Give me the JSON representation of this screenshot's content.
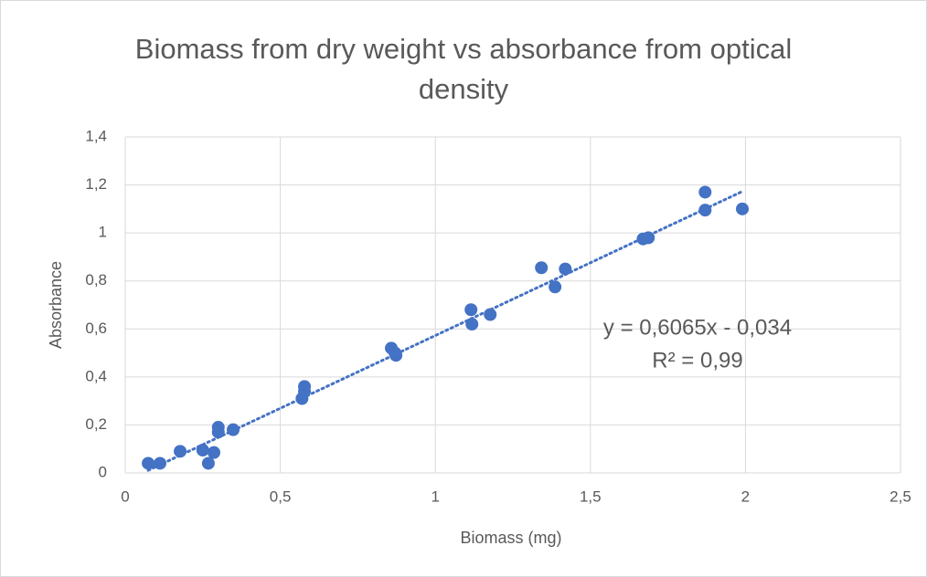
{
  "chart_data": {
    "type": "scatter",
    "title": "Biomass from dry weight vs absorbance from optical density",
    "xlabel": "Biomass (mg)",
    "ylabel": "Absorbance",
    "xlim": [
      0,
      2.5
    ],
    "ylim": [
      0,
      1.4
    ],
    "xticks": [
      0,
      {
        "value": 0.5,
        "label": "0,5"
      },
      1,
      {
        "value": 1.5,
        "label": "1,5"
      },
      2,
      {
        "value": 2.5,
        "label": "2,5"
      }
    ],
    "yticks": [
      0,
      {
        "value": 0.2,
        "label": "0,2"
      },
      {
        "value": 0.4,
        "label": "0,4"
      },
      {
        "value": 0.6,
        "label": "0,6"
      },
      {
        "value": 0.8,
        "label": "0,8"
      },
      1,
      {
        "value": 1.2,
        "label": "1,2"
      },
      {
        "value": 1.4,
        "label": "1,4"
      }
    ],
    "grid": true,
    "color": "#4472c4",
    "x": [
      0.074,
      0.112,
      0.177,
      0.25,
      0.268,
      0.286,
      0.3,
      0.3,
      0.348,
      0.57,
      0.578,
      0.578,
      0.858,
      0.87,
      0.873,
      1.115,
      1.118,
      1.177,
      1.342,
      1.386,
      1.419,
      1.67,
      1.687,
      1.87,
      1.87,
      1.99
    ],
    "y": [
      0.04,
      0.04,
      0.09,
      0.095,
      0.04,
      0.085,
      0.19,
      0.17,
      0.18,
      0.31,
      0.36,
      0.34,
      0.52,
      0.5,
      0.49,
      0.68,
      0.62,
      0.66,
      0.855,
      0.775,
      0.85,
      0.975,
      0.98,
      1.095,
      1.17,
      1.1
    ],
    "trendline": {
      "slope": 0.6065,
      "intercept": -0.034
    },
    "annotations": [
      "y = 0,6065x - 0,034",
      "R² = 0,99"
    ]
  }
}
